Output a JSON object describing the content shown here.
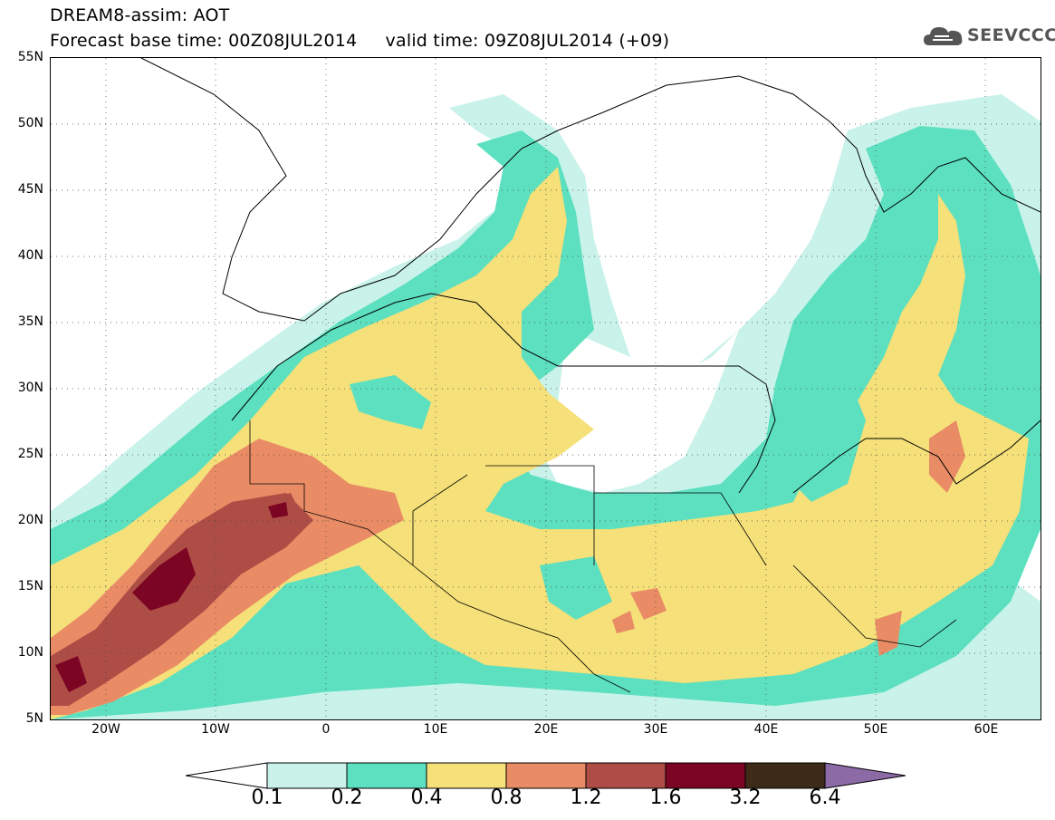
{
  "title": {
    "line1": "DREAM8-assim: AOT",
    "line2": "Forecast base time: 00Z08JUL2014     valid time: 09Z08JUL2014 (+09)"
  },
  "logo": {
    "text": "SEEVCCC",
    "icon": "cloud-icon",
    "color": "#555555"
  },
  "map": {
    "lat_range": [
      5,
      55
    ],
    "lon_range": [
      -25,
      65
    ],
    "lat_ticks": [
      "55N",
      "50N",
      "45N",
      "40N",
      "35N",
      "30N",
      "25N",
      "20N",
      "15N",
      "10N",
      "5N"
    ],
    "lon_ticks": [
      "20W",
      "10W",
      "0",
      "10E",
      "20E",
      "30E",
      "40E",
      "50E",
      "60E"
    ],
    "grid": "dotted"
  },
  "colorbar": {
    "levels": [
      "0.1",
      "0.2",
      "0.4",
      "0.8",
      "1.2",
      "1.6",
      "3.2",
      "6.4"
    ],
    "colors": [
      "#ffffff",
      "#c9f2ea",
      "#5ce0bf",
      "#f5e079",
      "#e98c65",
      "#ae4d46",
      "#7d0524",
      "#3d2a18",
      "#8c6aa6"
    ]
  }
}
